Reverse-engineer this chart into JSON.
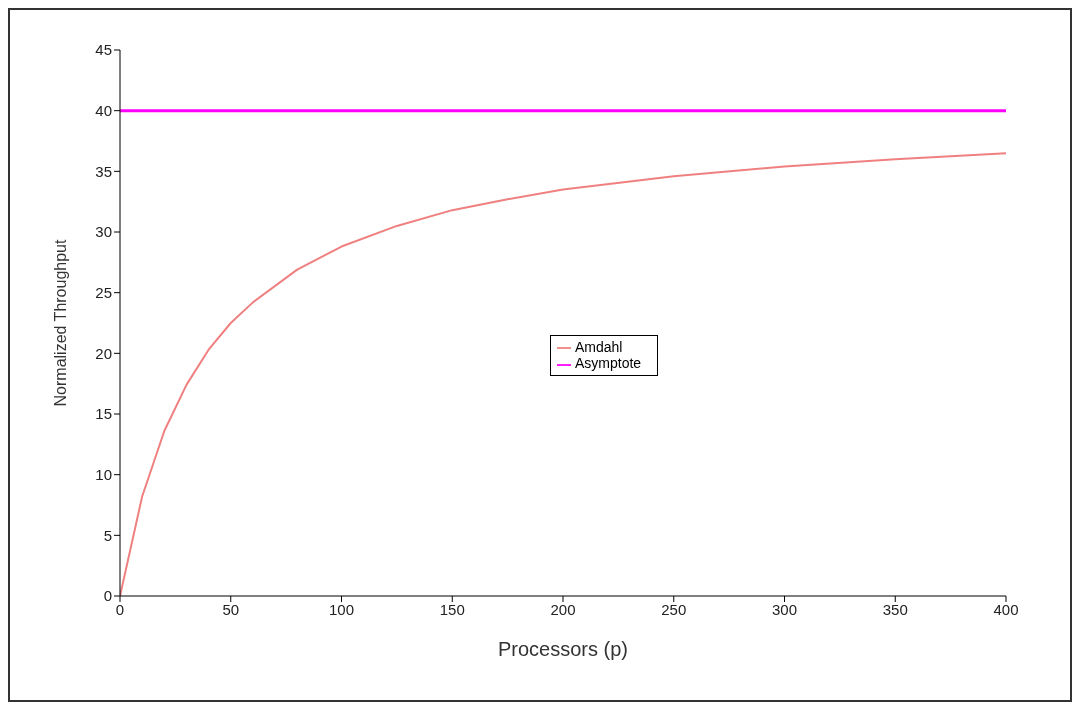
{
  "chart_data": {
    "type": "line",
    "xlabel": "Processors (p)",
    "ylabel": "Normalized Throughput",
    "xlim": [
      0,
      400
    ],
    "xticks": [
      0,
      50,
      100,
      150,
      200,
      250,
      300,
      350,
      400
    ],
    "ylim": [
      0,
      45
    ],
    "yticks": [
      0,
      5,
      10,
      15,
      20,
      25,
      30,
      35,
      40,
      45
    ],
    "grid": false,
    "legend": "center",
    "marker": "none",
    "line_style": "solid",
    "series": [
      {
        "name": "Amdahl",
        "color": "#f08080",
        "x": [
          0,
          10,
          20,
          30,
          40,
          50,
          60,
          80,
          100,
          125,
          150,
          175,
          200,
          250,
          300,
          350,
          400
        ],
        "values": [
          0,
          8.2,
          13.6,
          17.4,
          20.3,
          22.5,
          24.2,
          26.9,
          28.8,
          30.5,
          31.8,
          32.7,
          33.5,
          34.6,
          35.4,
          36.0,
          36.5
        ]
      },
      {
        "name": "Asymptote",
        "color": "#ff00ff",
        "x": [
          0,
          400
        ],
        "values": [
          40,
          40
        ]
      }
    ]
  }
}
